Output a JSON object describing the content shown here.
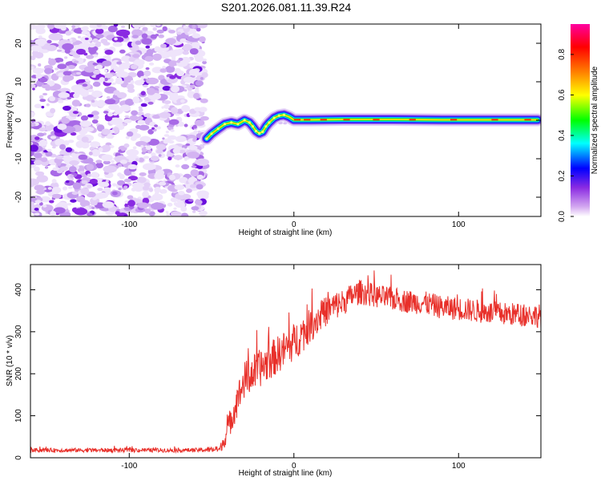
{
  "chart_data": [
    {
      "type": "heatmap",
      "title": "S201.2026.081.11.39.R24",
      "xlabel": "Height of straight line (km)",
      "ylabel": "Frequency (Hz)",
      "xlim": [
        -160,
        150
      ],
      "ylim": [
        -25,
        25
      ],
      "xticks": [
        -100,
        0,
        100
      ],
      "yticks": [
        -20,
        -10,
        0,
        10,
        20
      ],
      "colorbar": {
        "label": "Normalized spectral amplitude",
        "range": [
          0,
          0.95
        ],
        "ticks": [
          0.0,
          0.2,
          0.4,
          0.6,
          0.8
        ],
        "colors": [
          "#ffffff",
          "#d4a8f0",
          "#8a2be2",
          "#0000ff",
          "#00ffff",
          "#00ff00",
          "#ffff00",
          "#ff8000",
          "#ff0000",
          "#ff00a0"
        ]
      },
      "noise_region_x": [
        -160,
        -54
      ],
      "frequency_track": {
        "x": [
          -53,
          -50,
          -46,
          -42,
          -38,
          -34,
          -30,
          -27,
          -25,
          -23,
          -21,
          -19,
          -17,
          -15,
          -12,
          -9,
          -6,
          -3,
          0,
          10,
          30,
          60,
          90,
          120,
          148
        ],
        "y": [
          -4.8,
          -3.5,
          -2.2,
          -1.0,
          -0.6,
          -1.0,
          0.0,
          -0.6,
          -1.6,
          -2.8,
          -3.4,
          -3.0,
          -1.6,
          -0.6,
          0.6,
          1.2,
          1.4,
          0.9,
          0.1,
          0.1,
          0.2,
          0.2,
          0.1,
          0.1,
          0.1
        ]
      }
    },
    {
      "type": "line",
      "xlabel": "Height of straight line (km)",
      "ylabel": "SNR (10 * v/v)",
      "xlim": [
        -160,
        150
      ],
      "ylim": [
        0,
        460
      ],
      "xticks": [
        -100,
        0,
        100
      ],
      "yticks": [
        0,
        100,
        200,
        300,
        400
      ],
      "series": [
        {
          "name": "SNR",
          "color": "#e8302a",
          "envelope": {
            "x": [
              -160,
              -60,
              -45,
              -42,
              -38,
              -34,
              -30,
              -25,
              -20,
              -15,
              -10,
              -5,
              0,
              5,
              10,
              15,
              20,
              25,
              30,
              35,
              40,
              50,
              60,
              70,
              80,
              90,
              100,
              110,
              120,
              130,
              140,
              150
            ],
            "y": [
              18,
              18,
              20,
              45,
              95,
              140,
              185,
              200,
              215,
              230,
              245,
              260,
              275,
              295,
              315,
              335,
              350,
              362,
              370,
              385,
              395,
              385,
              378,
              372,
              368,
              358,
              355,
              350,
              345,
              342,
              340,
              338
            ],
            "jitter": [
              5,
              5,
              8,
              20,
              35,
              40,
              45,
              45,
              45,
              45,
              45,
              45,
              45,
              45,
              40,
              40,
              35,
              35,
              32,
              30,
              30,
              28,
              28,
              28,
              28,
              28,
              28,
              28,
              28,
              28,
              28,
              28
            ]
          }
        }
      ]
    }
  ]
}
